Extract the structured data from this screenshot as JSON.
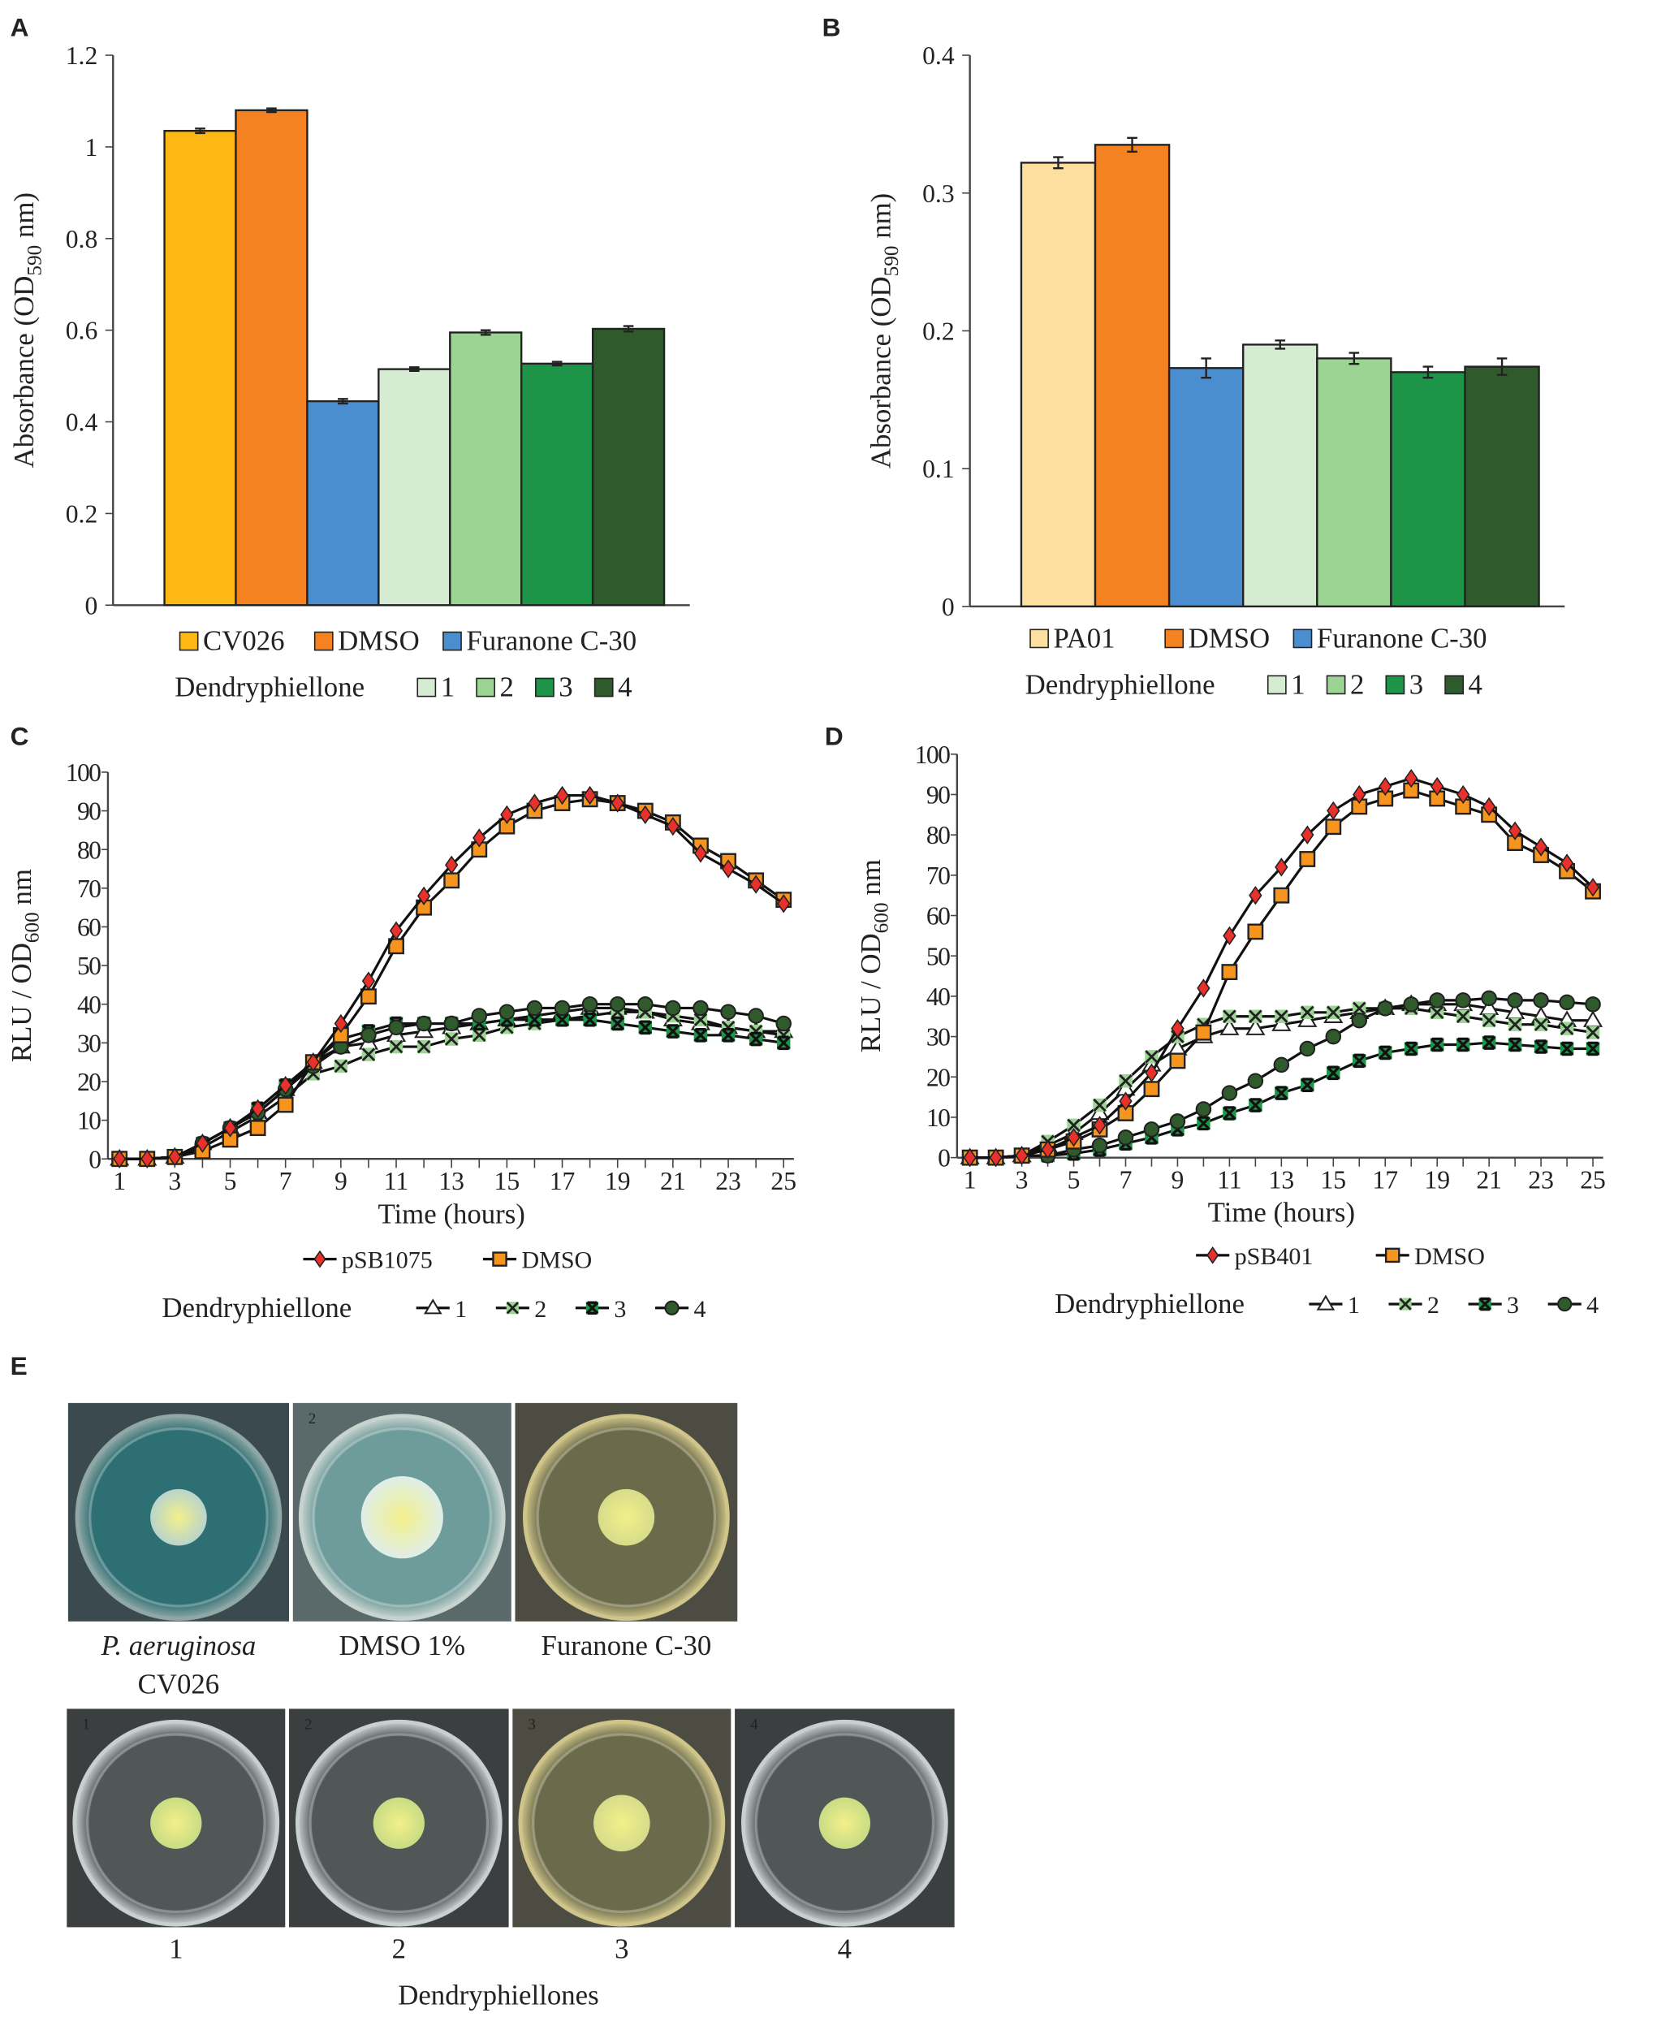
{
  "panel_labels": [
    "A",
    "B",
    "C",
    "D",
    "E"
  ],
  "chart_data": [
    {
      "id": "A",
      "type": "bar",
      "ylabel": "Absorbance (OD590 nm)",
      "ylabel_main": "Absorbance (OD",
      "ylabel_sub": "590",
      "ylabel_end": " nm)",
      "ylim": [
        0,
        1.2
      ],
      "yticks": [
        "0",
        "0.2",
        "0.4",
        "0.6",
        "0.8",
        "1",
        "1.2"
      ],
      "categories": [
        "CV026",
        "DMSO",
        "Furanone C-30",
        "1",
        "2",
        "3",
        "4"
      ],
      "values": [
        1.035,
        1.08,
        0.445,
        0.515,
        0.595,
        0.527,
        0.603
      ],
      "errors": [
        0.005,
        0.004,
        0.005,
        0.004,
        0.005,
        0.004,
        0.006
      ],
      "colors": [
        "#FDB813",
        "#F58220",
        "#4A8ED0",
        "#D6ECD2",
        "#9BD493",
        "#1E9448",
        "#2F5A2C"
      ],
      "legend_group_label": "Dendryphiellone"
    },
    {
      "id": "B",
      "type": "bar",
      "ylabel": "Absorbance (OD590 nm)",
      "ylabel_main": "Absorbance (OD",
      "ylabel_sub": "590",
      "ylabel_end": " nm)",
      "ylim": [
        0,
        0.4
      ],
      "yticks": [
        "0",
        "0.1",
        "0.2",
        "0.3",
        "0.4"
      ],
      "categories": [
        "PA01",
        "DMSO",
        "Furanone C-30",
        "1",
        "2",
        "3",
        "4"
      ],
      "values": [
        0.322,
        0.335,
        0.173,
        0.19,
        0.18,
        0.17,
        0.174
      ],
      "errors": [
        0.004,
        0.005,
        0.007,
        0.003,
        0.004,
        0.004,
        0.006
      ],
      "colors": [
        "#FDDFA0",
        "#F58220",
        "#4A8ED0",
        "#D6ECD2",
        "#9BD493",
        "#1E9448",
        "#2F5A2C"
      ],
      "legend_group_label": "Dendryphiellone"
    },
    {
      "id": "C",
      "type": "line",
      "xlabel": "Time (hours)",
      "ylabel": "RLU / OD600 nm",
      "ylabel_main": "RLU / OD",
      "ylabel_sub": "600",
      "ylabel_end": " nm",
      "xlim": [
        1,
        25
      ],
      "ylim": [
        0,
        100
      ],
      "xticks": [
        "1",
        "3",
        "5",
        "7",
        "9",
        "11",
        "13",
        "15",
        "17",
        "19",
        "21",
        "23",
        "25"
      ],
      "yticks": [
        "0",
        "10",
        "20",
        "30",
        "40",
        "50",
        "60",
        "70",
        "80",
        "90",
        "100"
      ],
      "legend_group_label": "Dendryphiellone",
      "series": [
        {
          "name": "pSB1075",
          "marker": "diamond",
          "color": "#E8312A",
          "values": [
            0,
            0,
            0.5,
            4,
            8,
            13,
            19,
            25,
            35,
            46,
            59,
            68,
            76,
            83,
            89,
            92,
            94,
            94,
            92,
            89,
            86,
            79,
            75,
            71,
            66
          ]
        },
        {
          "name": "DMSO",
          "marker": "square",
          "color": "#F7941D",
          "values": [
            0,
            0,
            0.5,
            2,
            5,
            8,
            14,
            25,
            32,
            42,
            55,
            65,
            72,
            80,
            86,
            90,
            92,
            93,
            92,
            90,
            87,
            81,
            77,
            72,
            67
          ]
        },
        {
          "name": "1",
          "marker": "triangle",
          "color": "#FFFFFF",
          "values": [
            0,
            0,
            0.5,
            4,
            8,
            12,
            18,
            25,
            29,
            30,
            32,
            33,
            34,
            35,
            36,
            37,
            38,
            39,
            39,
            38,
            36,
            35,
            34,
            33,
            33
          ]
        },
        {
          "name": "2",
          "marker": "x",
          "color": "#9BD493",
          "values": [
            0,
            0,
            0.5,
            3,
            7,
            11,
            16,
            22,
            24,
            27,
            29,
            29,
            31,
            32,
            34,
            35,
            36,
            37,
            38,
            38,
            37,
            36,
            34,
            33,
            32
          ]
        },
        {
          "name": "3",
          "marker": "xbox",
          "color": "#1E9448",
          "values": [
            0,
            0,
            0.5,
            4,
            8,
            13,
            19,
            25,
            31,
            33,
            35,
            35,
            35,
            35,
            36,
            36,
            36,
            36,
            35,
            34,
            33,
            32,
            32,
            31,
            30
          ]
        },
        {
          "name": "4",
          "marker": "circle",
          "color": "#2F5A2C",
          "values": [
            0,
            0,
            0.5,
            4,
            8,
            12,
            18,
            24,
            29,
            32,
            34,
            35,
            35,
            37,
            38,
            39,
            39,
            40,
            40,
            40,
            39,
            39,
            38,
            37,
            35
          ]
        }
      ]
    },
    {
      "id": "D",
      "type": "line",
      "xlabel": "Time (hours)",
      "ylabel": "RLU / OD600 nm",
      "ylabel_main": "RLU / OD",
      "ylabel_sub": "600",
      "ylabel_end": " nm",
      "xlim": [
        1,
        25
      ],
      "ylim": [
        0,
        100
      ],
      "xticks": [
        "1",
        "3",
        "5",
        "7",
        "9",
        "11",
        "13",
        "15",
        "17",
        "19",
        "21",
        "23",
        "25"
      ],
      "yticks": [
        "0",
        "10",
        "20",
        "30",
        "40",
        "50",
        "60",
        "70",
        "80",
        "90",
        "100"
      ],
      "legend_group_label": "Dendryphiellone",
      "series": [
        {
          "name": "pSB401",
          "marker": "diamond",
          "color": "#E8312A",
          "values": [
            0,
            0,
            0.5,
            2,
            5,
            8,
            14,
            21,
            32,
            42,
            55,
            65,
            72,
            80,
            86,
            90,
            92,
            94,
            92,
            90,
            87,
            81,
            77,
            73,
            67
          ]
        },
        {
          "name": "DMSO",
          "marker": "square",
          "color": "#F7941D",
          "values": [
            0,
            0,
            0.5,
            2,
            4,
            7,
            11,
            17,
            24,
            31,
            46,
            56,
            65,
            74,
            82,
            87,
            89,
            91,
            89,
            87,
            85,
            78,
            75,
            71,
            66
          ]
        },
        {
          "name": "1",
          "marker": "triangle",
          "color": "#FFFFFF",
          "values": [
            0,
            0,
            0.5,
            3,
            6,
            11,
            17,
            23,
            27,
            30,
            32,
            32,
            33,
            34,
            35,
            36,
            37,
            38,
            38,
            38,
            37,
            36,
            35,
            34,
            34
          ]
        },
        {
          "name": "2",
          "marker": "x",
          "color": "#9BD493",
          "values": [
            0,
            0,
            0.5,
            4,
            8,
            13,
            19,
            25,
            30,
            33,
            35,
            35,
            35,
            36,
            36,
            37,
            37,
            37,
            36,
            35,
            34,
            33,
            33,
            32,
            31
          ]
        },
        {
          "name": "3",
          "marker": "xbox",
          "color": "#1E9448",
          "values": [
            0,
            0,
            0.5,
            0.5,
            1,
            2,
            3.5,
            5,
            7,
            8.5,
            11,
            13,
            16,
            18,
            21,
            24,
            26,
            27,
            28,
            28,
            28.5,
            28,
            27.5,
            27,
            27
          ]
        },
        {
          "name": "4",
          "marker": "circle",
          "color": "#2F5A2C",
          "values": [
            0,
            0,
            0.5,
            0.5,
            2,
            3,
            5,
            7,
            9,
            12,
            16,
            19,
            23,
            27,
            30,
            34,
            37,
            38,
            39,
            39,
            39.5,
            39,
            39,
            38.5,
            38
          ]
        }
      ]
    }
  ],
  "panel_e": {
    "row1": [
      {
        "caption_italic": "P. aeruginosa",
        "caption": "CV026",
        "plate": "blue"
      },
      {
        "caption": "DMSO 1%",
        "plate": "blue-light"
      },
      {
        "caption": "Furanone C-30",
        "plate": "clear-yellow"
      }
    ],
    "row2": [
      {
        "caption": "1",
        "plate": "clear"
      },
      {
        "caption": "2",
        "plate": "clear"
      },
      {
        "caption": "3",
        "plate": "clear-yellow"
      },
      {
        "caption": "4",
        "plate": "clear"
      }
    ],
    "row2_group_label": "Dendryphiellones",
    "well_numbers": [
      "1",
      "2",
      "3",
      "4"
    ]
  }
}
